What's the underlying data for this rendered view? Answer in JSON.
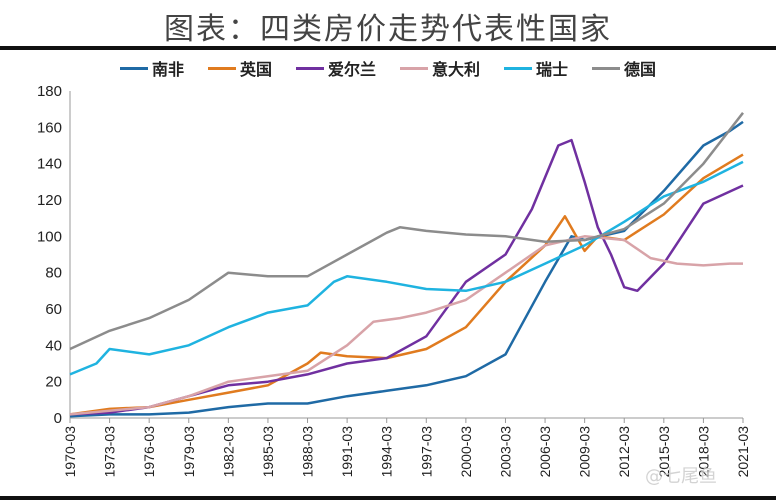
{
  "chart_data": {
    "type": "line",
    "title": "图表：四类房价走势代表性国家",
    "xlabel": "",
    "ylabel": "",
    "ylim": [
      0,
      180
    ],
    "yticks": [
      0,
      20,
      40,
      60,
      80,
      100,
      120,
      140,
      160,
      180
    ],
    "xticks": [
      "1970-03",
      "1973-03",
      "1976-03",
      "1979-03",
      "1982-03",
      "1985-03",
      "1988-03",
      "1991-03",
      "1994-03",
      "1997-03",
      "2000-03",
      "2003-03",
      "2006-03",
      "2009-03",
      "2012-03",
      "2015-03",
      "2018-03",
      "2021-03"
    ],
    "xlim": [
      1970,
      2021
    ],
    "legend_position": "top",
    "series": [
      {
        "name": "南非",
        "color": "#1f6aa5",
        "points": [
          [
            1970,
            1
          ],
          [
            1973,
            2
          ],
          [
            1976,
            2
          ],
          [
            1979,
            3
          ],
          [
            1982,
            6
          ],
          [
            1985,
            8
          ],
          [
            1988,
            8
          ],
          [
            1991,
            12
          ],
          [
            1994,
            15
          ],
          [
            1997,
            18
          ],
          [
            2000,
            23
          ],
          [
            2003,
            35
          ],
          [
            2006,
            75
          ],
          [
            2008,
            100
          ],
          [
            2009,
            98
          ],
          [
            2012,
            103
          ],
          [
            2015,
            125
          ],
          [
            2018,
            150
          ],
          [
            2020,
            158
          ],
          [
            2021,
            163
          ]
        ]
      },
      {
        "name": "英国",
        "color": "#e07b1f",
        "points": [
          [
            1970,
            2
          ],
          [
            1973,
            5
          ],
          [
            1976,
            6
          ],
          [
            1979,
            10
          ],
          [
            1982,
            14
          ],
          [
            1985,
            18
          ],
          [
            1988,
            30
          ],
          [
            1989,
            36
          ],
          [
            1991,
            34
          ],
          [
            1994,
            33
          ],
          [
            1997,
            38
          ],
          [
            2000,
            50
          ],
          [
            2003,
            75
          ],
          [
            2006,
            95
          ],
          [
            2007.5,
            111
          ],
          [
            2009,
            92
          ],
          [
            2010,
            100
          ],
          [
            2012,
            98
          ],
          [
            2015,
            112
          ],
          [
            2018,
            132
          ],
          [
            2021,
            145
          ]
        ]
      },
      {
        "name": "爱尔兰",
        "color": "#7030a0",
        "points": [
          [
            1970,
            2
          ],
          [
            1973,
            3
          ],
          [
            1976,
            6
          ],
          [
            1979,
            12
          ],
          [
            1982,
            18
          ],
          [
            1985,
            20
          ],
          [
            1988,
            24
          ],
          [
            1991,
            30
          ],
          [
            1994,
            33
          ],
          [
            1997,
            45
          ],
          [
            2000,
            75
          ],
          [
            2003,
            90
          ],
          [
            2005,
            115
          ],
          [
            2007,
            150
          ],
          [
            2008,
            153
          ],
          [
            2009,
            130
          ],
          [
            2010,
            105
          ],
          [
            2011,
            90
          ],
          [
            2012,
            72
          ],
          [
            2013,
            70
          ],
          [
            2015,
            85
          ],
          [
            2018,
            118
          ],
          [
            2021,
            128
          ]
        ]
      },
      {
        "name": "意大利",
        "color": "#d8a3a8",
        "points": [
          [
            1970,
            2
          ],
          [
            1973,
            4
          ],
          [
            1976,
            6
          ],
          [
            1979,
            12
          ],
          [
            1982,
            20
          ],
          [
            1985,
            23
          ],
          [
            1988,
            26
          ],
          [
            1991,
            40
          ],
          [
            1993,
            53
          ],
          [
            1995,
            55
          ],
          [
            1997,
            58
          ],
          [
            2000,
            65
          ],
          [
            2003,
            80
          ],
          [
            2006,
            95
          ],
          [
            2009,
            100
          ],
          [
            2012,
            98
          ],
          [
            2014,
            88
          ],
          [
            2016,
            85
          ],
          [
            2018,
            84
          ],
          [
            2020,
            85
          ],
          [
            2021,
            85
          ]
        ]
      },
      {
        "name": "瑞士",
        "color": "#1fb3e0",
        "points": [
          [
            1970,
            24
          ],
          [
            1972,
            30
          ],
          [
            1973,
            38
          ],
          [
            1976,
            35
          ],
          [
            1979,
            40
          ],
          [
            1982,
            50
          ],
          [
            1985,
            58
          ],
          [
            1988,
            62
          ],
          [
            1990,
            75
          ],
          [
            1991,
            78
          ],
          [
            1994,
            75
          ],
          [
            1997,
            71
          ],
          [
            2000,
            70
          ],
          [
            2003,
            75
          ],
          [
            2006,
            85
          ],
          [
            2009,
            95
          ],
          [
            2012,
            108
          ],
          [
            2015,
            122
          ],
          [
            2018,
            130
          ],
          [
            2021,
            141
          ]
        ]
      },
      {
        "name": "德国",
        "color": "#8c8c8c",
        "points": [
          [
            1970,
            38
          ],
          [
            1973,
            48
          ],
          [
            1976,
            55
          ],
          [
            1979,
            65
          ],
          [
            1982,
            80
          ],
          [
            1985,
            78
          ],
          [
            1988,
            78
          ],
          [
            1991,
            90
          ],
          [
            1994,
            102
          ],
          [
            1995,
            105
          ],
          [
            1997,
            103
          ],
          [
            2000,
            101
          ],
          [
            2003,
            100
          ],
          [
            2006,
            97
          ],
          [
            2009,
            98
          ],
          [
            2012,
            104
          ],
          [
            2015,
            118
          ],
          [
            2018,
            140
          ],
          [
            2021,
            168
          ]
        ]
      }
    ]
  },
  "watermark": "@七尾鱼"
}
